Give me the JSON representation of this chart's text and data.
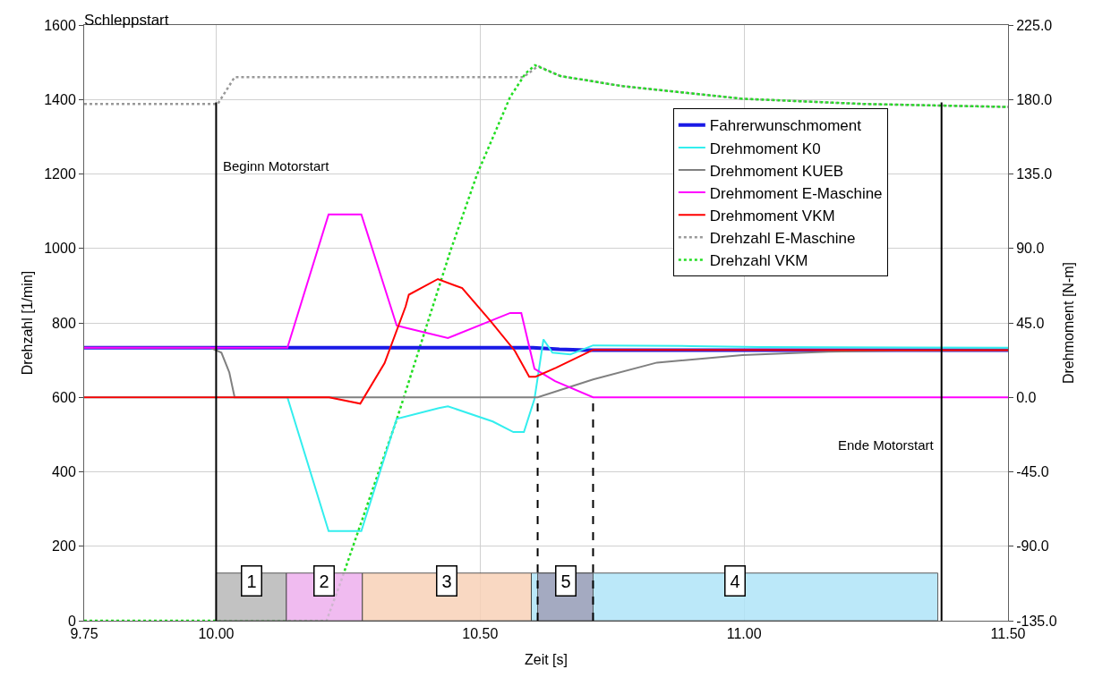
{
  "chart_data": {
    "type": "line",
    "title": "Schleppstart",
    "xlabel": "Zeit [s]",
    "ylabel": "Drehzahl [1/min]",
    "y2label": "Drehmoment [N-m]",
    "xlim": [
      9.75,
      11.5
    ],
    "xticks": [
      {
        "value": 9.75,
        "label": "9.75"
      },
      {
        "value": 10.0,
        "label": "10.00"
      },
      {
        "value": 10.5,
        "label": "10.50"
      },
      {
        "value": 11.0,
        "label": "11.00"
      },
      {
        "value": 11.5,
        "label": "11.50"
      }
    ],
    "ylim": [
      0,
      1600
    ],
    "yticks": [
      0,
      200,
      400,
      600,
      800,
      1000,
      1200,
      1400,
      1600
    ],
    "y2lim": [
      -135,
      225
    ],
    "y2ticks": [
      {
        "value": -135,
        "label": "-135.0"
      },
      {
        "value": -90,
        "label": "-90.0"
      },
      {
        "value": -45,
        "label": "-45.0"
      },
      {
        "value": 0,
        "label": "0.0"
      },
      {
        "value": 45,
        "label": "45.0"
      },
      {
        "value": 90,
        "label": "90.0"
      },
      {
        "value": 135,
        "label": "135.0"
      },
      {
        "value": 180,
        "label": "180.0"
      },
      {
        "value": 225,
        "label": "225.0"
      }
    ],
    "grid": true,
    "legend": "top right",
    "series": [
      {
        "name": "Fahrerwunschmoment",
        "color": "#1a1ae6",
        "axis": "y2",
        "line_style": "solid",
        "x": [
          9.75,
          10.6,
          10.65,
          10.7,
          11.5
        ],
        "values": [
          30,
          30,
          29,
          28.5,
          28.5
        ]
      },
      {
        "name": "Drehmoment K0",
        "color": "#33eeee",
        "axis": "y2",
        "line_style": "solid",
        "x": [
          9.75,
          10.135,
          10.213,
          10.275,
          10.342,
          10.422,
          10.439,
          10.524,
          10.563,
          10.583,
          10.603,
          10.62,
          10.637,
          10.671,
          10.714,
          10.9,
          11.03,
          11.5
        ],
        "values": [
          0,
          0,
          -80.8,
          -80.8,
          -13,
          -6.5,
          -5.4,
          -14.6,
          -21,
          -21,
          -1,
          35,
          27,
          26,
          31.4,
          31,
          30.4,
          30
        ]
      },
      {
        "name": "Drehmoment KUEB",
        "color": "#808080",
        "axis": "y2",
        "line_style": "solid",
        "x": [
          9.75,
          9.989,
          10.01,
          10.025,
          10.035,
          10.609,
          10.714,
          10.835,
          10.997,
          11.16,
          11.29,
          11.5
        ],
        "values": [
          30,
          30,
          27,
          15,
          0,
          0,
          10.8,
          21,
          25.5,
          27.6,
          28.2,
          28.5
        ]
      },
      {
        "name": "Drehmoment E-Maschine",
        "color": "#ff00ff",
        "axis": "y2",
        "line_style": "solid",
        "x": [
          9.75,
          10.135,
          10.213,
          10.275,
          10.342,
          10.359,
          10.439,
          10.557,
          10.578,
          10.603,
          10.642,
          10.714,
          11.5
        ],
        "values": [
          30,
          30,
          110.6,
          110.6,
          43.4,
          42,
          35.8,
          51,
          51,
          17.3,
          9.8,
          0,
          0
        ]
      },
      {
        "name": "Drehmoment VKM",
        "color": "#ff0000",
        "axis": "y2",
        "line_style": "solid",
        "x": [
          9.75,
          10.214,
          10.273,
          10.319,
          10.359,
          10.365,
          10.42,
          10.466,
          10.52,
          10.566,
          10.593,
          10.605,
          10.644,
          10.714,
          11.5
        ],
        "values": [
          0,
          0,
          -3.8,
          20.6,
          55,
          62,
          71.5,
          66,
          46,
          28,
          12.5,
          12.5,
          17.9,
          28.7,
          28.5
        ]
      },
      {
        "name": "Drehzahl E-Maschine",
        "color": "#999999",
        "axis": "y",
        "line_style": "dotted",
        "x": [
          9.75,
          10.003,
          10.035,
          10.582,
          10.61,
          10.652,
          10.769,
          10.997,
          11.226,
          11.5
        ],
        "values": [
          1388,
          1388,
          1460,
          1460,
          1490,
          1463,
          1436,
          1402,
          1388,
          1380
        ]
      },
      {
        "name": "Drehzahl VKM",
        "color": "#22dd22",
        "axis": "y",
        "line_style": "dotted",
        "x": [
          9.75,
          10.209,
          10.235,
          10.342,
          10.387,
          10.443,
          10.494,
          10.557,
          10.586,
          10.604,
          10.652,
          10.769,
          10.997,
          11.226,
          11.5
        ],
        "values": [
          0,
          0,
          100,
          540,
          740,
          990,
          1198,
          1407,
          1470,
          1492,
          1463,
          1436,
          1402,
          1388,
          1380
        ]
      }
    ],
    "ref_lines": [
      {
        "axis": "x",
        "value": 10.0,
        "label": "Beginn Motorstart",
        "color": "#000000",
        "line_style": "solid"
      },
      {
        "axis": "x",
        "value": 11.374,
        "label": "Ende Motorstart",
        "color": "#000000",
        "line_style": "solid"
      },
      {
        "axis": "x",
        "value": 10.609,
        "label": null,
        "color": "#000000",
        "line_style": "dashed"
      },
      {
        "axis": "x",
        "value": 10.714,
        "label": null,
        "color": "#000000",
        "line_style": "dashed"
      }
    ],
    "bands": [
      {
        "axis": "x",
        "from": 10.0,
        "to": 10.133,
        "label": "1",
        "color": "#b8b8b8"
      },
      {
        "axis": "x",
        "from": 10.133,
        "to": 10.277,
        "label": "2",
        "color": "#eeb0ee"
      },
      {
        "axis": "x",
        "from": 10.277,
        "to": 10.597,
        "label": "3",
        "color": "#f8d2b8"
      },
      {
        "axis": "x",
        "from": 10.597,
        "to": 11.367,
        "label": "4",
        "color": "#b0e4f8"
      },
      {
        "axis": "x",
        "from": 10.609,
        "to": 10.714,
        "label": "5",
        "color": "#a0a0b8"
      }
    ]
  }
}
